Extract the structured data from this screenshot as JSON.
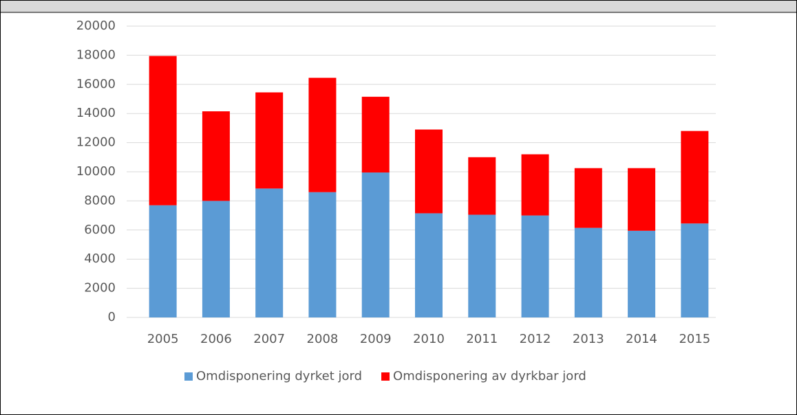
{
  "chart_data": {
    "type": "bar",
    "stacked": true,
    "categories": [
      "2005",
      "2006",
      "2007",
      "2008",
      "2009",
      "2010",
      "2011",
      "2012",
      "2013",
      "2014",
      "2015"
    ],
    "series": [
      {
        "name": "Omdisponering dyrket jord",
        "color": "#5b9bd5",
        "values": [
          7700,
          8000,
          8850,
          8600,
          9950,
          7150,
          7050,
          7000,
          6150,
          5950,
          6450
        ]
      },
      {
        "name": "Omdisponering av dyrkbar jord",
        "color": "#ff0000",
        "values": [
          10250,
          6150,
          6600,
          7850,
          5200,
          5750,
          3950,
          4200,
          4100,
          4300,
          6350
        ]
      }
    ],
    "ylim": [
      0,
      20000
    ],
    "yticks": [
      0,
      2000,
      4000,
      6000,
      8000,
      10000,
      12000,
      14000,
      16000,
      18000,
      20000
    ],
    "grid": true,
    "legend": "bottom"
  }
}
